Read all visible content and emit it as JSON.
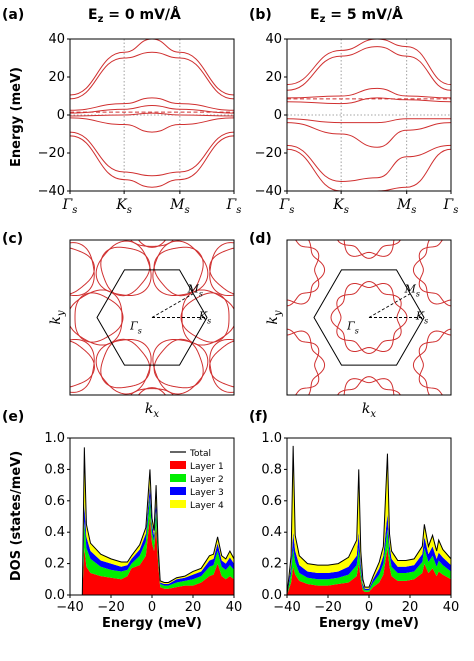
{
  "figure": {
    "panels": {
      "a": {
        "label": "(a)",
        "title": "E",
        "title_sub": "z",
        "title_rest": " = 0 mV/Å"
      },
      "b": {
        "label": "(b)",
        "title": "E",
        "title_sub": "z",
        "title_rest": " = 5 mV/Å"
      },
      "c": {
        "label": "(c)"
      },
      "d": {
        "label": "(d)"
      },
      "e": {
        "label": "(e)"
      },
      "f": {
        "label": "(f)"
      }
    },
    "band_axes": {
      "ylabel": "Energy (meV)",
      "ylim": [
        -40,
        40
      ],
      "yticks": [
        "40",
        "20",
        "0",
        "−20",
        "−40"
      ],
      "kpoints": [
        {
          "main": "Γ",
          "sub": "s"
        },
        {
          "main": "K",
          "sub": "s"
        },
        {
          "main": "M",
          "sub": "s"
        },
        {
          "main": "Γ",
          "sub": "s"
        }
      ]
    },
    "fs_axes": {
      "xlabel_main": "k",
      "xlabel_sub": "x",
      "ylabel_main": "k",
      "ylabel_sub": "y",
      "points": [
        {
          "main": "Γ",
          "sub": "s"
        },
        {
          "main": "K",
          "sub": "s"
        },
        {
          "main": "M",
          "sub": "s"
        }
      ]
    },
    "dos_axes": {
      "ylabel": "DOS (states/meV)",
      "xlabel": "Energy (meV)",
      "xticks": [
        "−40",
        "−20",
        "0",
        "20",
        "40"
      ],
      "yticks": [
        "1.0",
        "0.8",
        "0.6",
        "0.4",
        "0.2",
        "0.0"
      ],
      "xlim": [
        -40,
        40
      ],
      "ylim": [
        0,
        1.0
      ]
    },
    "legend": [
      {
        "name": "Total",
        "color": "#000000",
        "kind": "line"
      },
      {
        "name": "Layer 1",
        "color": "#ff0000",
        "kind": "patch"
      },
      {
        "name": "Layer 2",
        "color": "#00ee00",
        "kind": "patch"
      },
      {
        "name": "Layer 3",
        "color": "#0000ff",
        "kind": "patch"
      },
      {
        "name": "Layer 4",
        "color": "#ffff00",
        "kind": "patch"
      }
    ]
  },
  "chart_data": [
    {
      "panel": "a",
      "type": "line",
      "xlabel": "",
      "ylabel": "Energy (meV)",
      "ylim": [
        -40,
        40
      ],
      "fermi_level": 1.5,
      "series": [
        {
          "x": [
            0,
            0.33,
            0.5,
            0.67,
            1
          ],
          "values": [
            10.5,
            33,
            40,
            33,
            10.5
          ]
        },
        {
          "x": [
            0,
            0.33,
            0.5,
            0.67,
            1
          ],
          "values": [
            8.5,
            30,
            33,
            30,
            8.5
          ]
        },
        {
          "x": [
            0,
            0.33,
            0.5,
            0.67,
            1
          ],
          "values": [
            2.5,
            6,
            9,
            6,
            2.5
          ]
        },
        {
          "x": [
            0,
            0.33,
            0.5,
            0.67,
            1
          ],
          "values": [
            1,
            3,
            5,
            3,
            1
          ]
        },
        {
          "x": [
            0,
            0.33,
            0.5,
            0.67,
            1
          ],
          "values": [
            -0.5,
            0,
            1,
            0,
            -0.5
          ]
        },
        {
          "x": [
            0,
            0.33,
            0.5,
            0.67,
            1
          ],
          "values": [
            -1.5,
            -5,
            -9,
            -5,
            -1.5
          ]
        },
        {
          "x": [
            0,
            0.33,
            0.5,
            0.67,
            1
          ],
          "values": [
            -9,
            -30,
            -32,
            -30,
            -9
          ]
        },
        {
          "x": [
            0,
            0.33,
            0.5,
            0.67,
            1
          ],
          "values": [
            -11,
            -34,
            -38,
            -34,
            -11
          ]
        }
      ]
    },
    {
      "panel": "b",
      "type": "line",
      "xlabel": "",
      "ylabel": "",
      "ylim": [
        -40,
        40
      ],
      "fermi_level": 8.5,
      "series": [
        {
          "x": [
            0,
            0.33,
            0.55,
            0.73,
            1
          ],
          "values": [
            16,
            34,
            40,
            36,
            16
          ]
        },
        {
          "x": [
            0,
            0.33,
            0.55,
            0.73,
            1
          ],
          "values": [
            13,
            31,
            36,
            31,
            13
          ]
        },
        {
          "x": [
            0,
            0.33,
            0.55,
            0.73,
            1
          ],
          "values": [
            9,
            10,
            14,
            10,
            9
          ]
        },
        {
          "x": [
            0,
            0.33,
            0.55,
            0.73,
            1
          ],
          "values": [
            7,
            6,
            9,
            8,
            7
          ]
        },
        {
          "x": [
            0,
            0.33,
            0.55,
            0.73,
            1
          ],
          "values": [
            -2,
            -4,
            -4,
            -2,
            -2
          ]
        },
        {
          "x": [
            0,
            0.33,
            0.55,
            0.73,
            1
          ],
          "values": [
            -4,
            -10,
            -17,
            -8,
            -4
          ]
        },
        {
          "x": [
            0,
            0.33,
            0.55,
            0.73,
            1
          ],
          "values": [
            -16,
            -35,
            -33,
            -22,
            -16
          ]
        },
        {
          "x": [
            0,
            0.33,
            0.55,
            0.73,
            1
          ],
          "values": [
            -18,
            -40,
            -40,
            -38,
            -18
          ]
        }
      ]
    },
    {
      "panel": "c",
      "type": "scatter",
      "description_kind": "fermi-surface",
      "fermi_level": 1.5
    },
    {
      "panel": "d",
      "type": "scatter",
      "description_kind": "fermi-surface",
      "fermi_level": 8.5
    },
    {
      "panel": "e",
      "type": "area",
      "xlabel": "Energy (meV)",
      "ylabel": "DOS (states/meV)",
      "xlim": [
        -40,
        40
      ],
      "ylim": [
        0,
        1.0
      ],
      "x": [
        -40,
        -36,
        -34,
        -33,
        -32,
        -30,
        -25,
        -20,
        -15,
        -12,
        -10,
        -6,
        -3,
        -1,
        0,
        1,
        2,
        3,
        4,
        6,
        8,
        12,
        16,
        20,
        24,
        28,
        30,
        32,
        34,
        36,
        38,
        40
      ],
      "series": [
        {
          "name": "Layer 1",
          "values": [
            0,
            0,
            0,
            0.3,
            0.18,
            0.14,
            0.12,
            0.11,
            0.1,
            0.12,
            0.17,
            0.19,
            0.25,
            0.5,
            0.33,
            0.28,
            0.44,
            0.2,
            0.05,
            0.04,
            0.04,
            0.05,
            0.06,
            0.06,
            0.08,
            0.12,
            0.13,
            0.2,
            0.12,
            0.1,
            0.12,
            0.1
          ]
        },
        {
          "name": "Layer 2",
          "values": [
            0,
            0,
            0,
            0.17,
            0.12,
            0.09,
            0.06,
            0.05,
            0.05,
            0.04,
            0.03,
            0.06,
            0.09,
            0.12,
            0.07,
            0.06,
            0.1,
            0.05,
            0.02,
            0.02,
            0.02,
            0.03,
            0.03,
            0.04,
            0.04,
            0.06,
            0.06,
            0.08,
            0.06,
            0.06,
            0.07,
            0.06
          ]
        },
        {
          "name": "Layer 3",
          "values": [
            0,
            0,
            0,
            0.12,
            0.07,
            0.05,
            0.04,
            0.04,
            0.03,
            0.03,
            0.03,
            0.04,
            0.05,
            0.08,
            0.05,
            0.04,
            0.06,
            0.03,
            0.01,
            0.01,
            0.01,
            0.02,
            0.02,
            0.03,
            0.03,
            0.04,
            0.04,
            0.05,
            0.04,
            0.04,
            0.05,
            0.04
          ]
        },
        {
          "name": "Layer 4",
          "values": [
            0,
            0,
            0,
            0.35,
            0.08,
            0.05,
            0.04,
            0.03,
            0.03,
            0.02,
            0.02,
            0.03,
            0.04,
            0.1,
            0.04,
            0.03,
            0.1,
            0.03,
            0.01,
            0.01,
            0.01,
            0.01,
            0.01,
            0.02,
            0.02,
            0.03,
            0.03,
            0.04,
            0.03,
            0.03,
            0.04,
            0.03
          ]
        }
      ]
    },
    {
      "panel": "f",
      "type": "area",
      "xlabel": "Energy (meV)",
      "ylabel": "",
      "xlim": [
        -40,
        40
      ],
      "ylim": [
        0,
        1.0
      ],
      "x": [
        -40,
        -38,
        -37,
        -36,
        -34,
        -30,
        -25,
        -20,
        -15,
        -10,
        -6,
        -5,
        -4,
        -3,
        -2,
        0,
        2,
        5,
        7,
        9,
        10,
        11,
        14,
        18,
        22,
        26,
        27,
        29,
        31,
        33,
        34,
        36,
        40
      ],
      "series": [
        {
          "name": "Layer 1",
          "values": [
            0,
            0.08,
            0.18,
            0.13,
            0.09,
            0.07,
            0.06,
            0.06,
            0.07,
            0.08,
            0.12,
            0.2,
            0.1,
            0.03,
            0.02,
            0.02,
            0.05,
            0.08,
            0.13,
            0.3,
            0.18,
            0.12,
            0.09,
            0.09,
            0.1,
            0.14,
            0.2,
            0.14,
            0.17,
            0.12,
            0.15,
            0.13,
            0.1
          ]
        },
        {
          "name": "Layer 2",
          "values": [
            0,
            0.06,
            0.12,
            0.08,
            0.05,
            0.04,
            0.04,
            0.04,
            0.04,
            0.05,
            0.07,
            0.1,
            0.05,
            0.02,
            0.01,
            0.01,
            0.03,
            0.05,
            0.07,
            0.12,
            0.08,
            0.06,
            0.05,
            0.05,
            0.05,
            0.07,
            0.1,
            0.07,
            0.08,
            0.06,
            0.07,
            0.06,
            0.05
          ]
        },
        {
          "name": "Layer 3",
          "values": [
            0,
            0.05,
            0.1,
            0.07,
            0.05,
            0.04,
            0.04,
            0.04,
            0.04,
            0.05,
            0.06,
            0.1,
            0.05,
            0.02,
            0.01,
            0.01,
            0.02,
            0.04,
            0.05,
            0.1,
            0.06,
            0.05,
            0.04,
            0.04,
            0.04,
            0.05,
            0.07,
            0.05,
            0.06,
            0.05,
            0.05,
            0.05,
            0.04
          ]
        },
        {
          "name": "Layer 4",
          "values": [
            0,
            0.06,
            0.55,
            0.1,
            0.06,
            0.05,
            0.05,
            0.05,
            0.05,
            0.06,
            0.1,
            0.4,
            0.08,
            0.03,
            0.01,
            0.01,
            0.02,
            0.04,
            0.06,
            0.38,
            0.07,
            0.05,
            0.04,
            0.04,
            0.04,
            0.05,
            0.08,
            0.05,
            0.07,
            0.05,
            0.08,
            0.05,
            0.04
          ]
        }
      ]
    }
  ]
}
